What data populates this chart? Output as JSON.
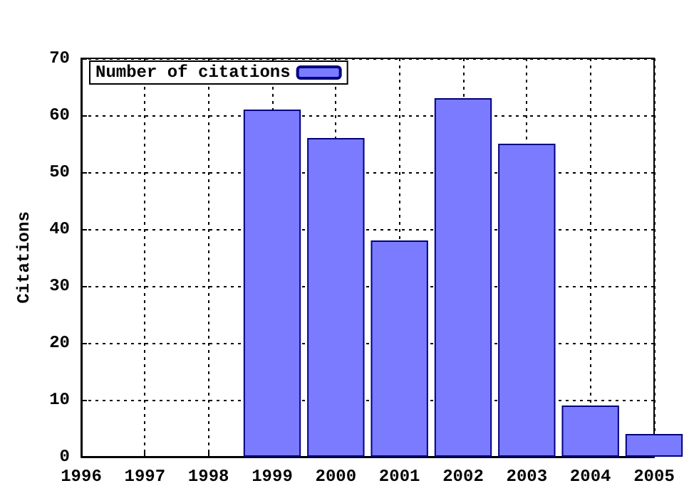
{
  "chart_data": {
    "type": "bar",
    "ylabel": "Citations",
    "x": [
      1999,
      2000,
      2001,
      2002,
      2003,
      2004,
      2005
    ],
    "series": [
      {
        "name": "Number of citations",
        "color": "#7b7bff",
        "values": [
          61,
          56,
          38,
          63,
          55,
          9,
          4
        ]
      }
    ],
    "xlim": [
      1996,
      2005
    ],
    "xticks": [
      1996,
      1997,
      1998,
      1999,
      2000,
      2001,
      2002,
      2003,
      2004,
      2005
    ],
    "ylim": [
      0,
      70
    ],
    "yticks": [
      0,
      10,
      20,
      30,
      40,
      50,
      60,
      70
    ],
    "grid": true,
    "legend": "top left"
  }
}
